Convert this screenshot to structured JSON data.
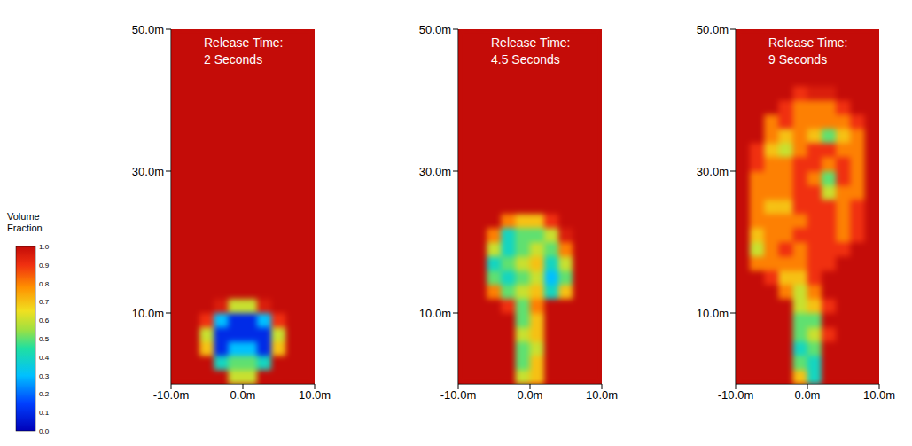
{
  "chart_data": [
    {
      "type": "heatmap",
      "title": "Release Time:\n2 Seconds",
      "xlim": [
        -10,
        10
      ],
      "xticks": [
        {
          "value": -10,
          "label": "-10.0m"
        },
        {
          "value": 0,
          "label": "0.0m"
        },
        {
          "value": 10,
          "label": "10.0m"
        }
      ],
      "ylim": [
        0,
        50
      ],
      "yticks": [
        {
          "value": 10,
          "label": "10.0m"
        },
        {
          "value": 30,
          "label": "30.0m"
        },
        {
          "value": 50,
          "label": "50.0m"
        }
      ],
      "x_edges": [
        -10,
        -8,
        -6,
        -4,
        -2,
        0,
        2,
        4,
        6,
        8,
        10
      ],
      "y_edges": [
        0,
        2,
        4,
        6,
        8,
        10,
        12,
        14,
        16,
        18,
        20,
        22,
        24,
        26,
        28,
        30,
        32,
        34,
        36,
        38,
        40,
        42,
        44,
        46,
        48,
        50
      ],
      "cells": [
        [
          1,
          1,
          1,
          1,
          0.6,
          0.6,
          1,
          1,
          1,
          1
        ],
        [
          1,
          1,
          1,
          0.4,
          0.5,
          0.5,
          0.4,
          1,
          1,
          1
        ],
        [
          1,
          1,
          0.7,
          0.1,
          0.3,
          0.3,
          0.1,
          0.7,
          1,
          1
        ],
        [
          1,
          1,
          0.6,
          0.1,
          0.1,
          0.1,
          0.1,
          0.6,
          1,
          1
        ],
        [
          1,
          1,
          0.9,
          0.3,
          0.1,
          0.1,
          0.3,
          0.9,
          1,
          1
        ],
        [
          1,
          1,
          1,
          0.95,
          0.6,
          0.6,
          0.95,
          1,
          1,
          1
        ],
        [
          1,
          1,
          1,
          1,
          1,
          1,
          1,
          1,
          1,
          1
        ],
        [
          1,
          1,
          1,
          1,
          1,
          1,
          1,
          1,
          1,
          1
        ],
        [
          1,
          1,
          1,
          1,
          1,
          1,
          1,
          1,
          1,
          1
        ],
        [
          1,
          1,
          1,
          1,
          1,
          1,
          1,
          1,
          1,
          1
        ],
        [
          1,
          1,
          1,
          1,
          1,
          1,
          1,
          1,
          1,
          1
        ],
        [
          1,
          1,
          1,
          1,
          1,
          1,
          1,
          1,
          1,
          1
        ],
        [
          1,
          1,
          1,
          1,
          1,
          1,
          1,
          1,
          1,
          1
        ],
        [
          1,
          1,
          1,
          1,
          1,
          1,
          1,
          1,
          1,
          1
        ],
        [
          1,
          1,
          1,
          1,
          1,
          1,
          1,
          1,
          1,
          1
        ],
        [
          1,
          1,
          1,
          1,
          1,
          1,
          1,
          1,
          1,
          1
        ],
        [
          1,
          1,
          1,
          1,
          1,
          1,
          1,
          1,
          1,
          1
        ],
        [
          1,
          1,
          1,
          1,
          1,
          1,
          1,
          1,
          1,
          1
        ],
        [
          1,
          1,
          1,
          1,
          1,
          1,
          1,
          1,
          1,
          1
        ],
        [
          1,
          1,
          1,
          1,
          1,
          1,
          1,
          1,
          1,
          1
        ],
        [
          1,
          1,
          1,
          1,
          1,
          1,
          1,
          1,
          1,
          1
        ],
        [
          1,
          1,
          1,
          1,
          1,
          1,
          1,
          1,
          1,
          1
        ],
        [
          1,
          1,
          1,
          1,
          1,
          1,
          1,
          1,
          1,
          1
        ],
        [
          1,
          1,
          1,
          1,
          1,
          1,
          1,
          1,
          1,
          1
        ],
        [
          1,
          1,
          1,
          1,
          1,
          1,
          1,
          1,
          1,
          1
        ]
      ]
    },
    {
      "type": "heatmap",
      "title": "Release Time:\n4.5 Seconds",
      "xlim": [
        -10,
        10
      ],
      "xticks": [
        {
          "value": -10,
          "label": "-10.0m"
        },
        {
          "value": 0,
          "label": "0.0m"
        },
        {
          "value": 10,
          "label": "10.0m"
        }
      ],
      "ylim": [
        0,
        50
      ],
      "yticks": [
        {
          "value": 10,
          "label": "10.0m"
        },
        {
          "value": 30,
          "label": "30.0m"
        },
        {
          "value": 50,
          "label": "50.0m"
        }
      ],
      "x_edges": [
        -10,
        -8,
        -6,
        -4,
        -2,
        0,
        2,
        4,
        6,
        8,
        10
      ],
      "y_edges": [
        0,
        2,
        4,
        6,
        8,
        10,
        12,
        14,
        16,
        18,
        20,
        22,
        24,
        26,
        28,
        30,
        32,
        34,
        36,
        38,
        40,
        42,
        44,
        46,
        48,
        50
      ],
      "cells": [
        [
          1,
          1,
          1,
          1,
          0.6,
          0.7,
          1,
          1,
          1,
          1
        ],
        [
          1,
          1,
          1,
          1,
          0.5,
          0.7,
          1,
          1,
          1,
          1
        ],
        [
          1,
          1,
          1,
          1,
          0.5,
          0.6,
          1,
          1,
          1,
          1
        ],
        [
          1,
          1,
          1,
          1,
          0.6,
          0.7,
          1,
          1,
          1,
          1
        ],
        [
          1,
          1,
          1,
          1,
          0.5,
          0.7,
          1,
          1,
          1,
          1
        ],
        [
          1,
          1,
          1,
          0.9,
          0.5,
          0.8,
          1,
          1,
          1,
          1
        ],
        [
          1,
          1,
          0.8,
          0.5,
          0.6,
          0.7,
          0.4,
          0.7,
          1,
          1
        ],
        [
          1,
          1,
          0.5,
          0.4,
          0.5,
          0.6,
          0.3,
          0.5,
          1,
          1
        ],
        [
          1,
          1,
          0.4,
          0.5,
          0.6,
          0.7,
          0.4,
          0.6,
          1,
          1
        ],
        [
          1,
          1,
          0.6,
          0.4,
          0.5,
          0.6,
          0.5,
          0.8,
          1,
          1
        ],
        [
          1,
          1,
          0.8,
          0.4,
          0.5,
          0.5,
          0.6,
          0.95,
          1,
          1
        ],
        [
          1,
          1,
          1,
          0.8,
          0.7,
          0.7,
          0.9,
          1,
          1,
          1
        ],
        [
          1,
          1,
          1,
          1,
          1,
          1,
          1,
          1,
          1,
          1
        ],
        [
          1,
          1,
          1,
          1,
          1,
          1,
          1,
          1,
          1,
          1
        ],
        [
          1,
          1,
          1,
          1,
          1,
          1,
          1,
          1,
          1,
          1
        ],
        [
          1,
          1,
          1,
          1,
          1,
          1,
          1,
          1,
          1,
          1
        ],
        [
          1,
          1,
          1,
          1,
          1,
          1,
          1,
          1,
          1,
          1
        ],
        [
          1,
          1,
          1,
          1,
          1,
          1,
          1,
          1,
          1,
          1
        ],
        [
          1,
          1,
          1,
          1,
          1,
          1,
          1,
          1,
          1,
          1
        ],
        [
          1,
          1,
          1,
          1,
          1,
          1,
          1,
          1,
          1,
          1
        ],
        [
          1,
          1,
          1,
          1,
          1,
          1,
          1,
          1,
          1,
          1
        ],
        [
          1,
          1,
          1,
          1,
          1,
          1,
          1,
          1,
          1,
          1
        ],
        [
          1,
          1,
          1,
          1,
          1,
          1,
          1,
          1,
          1,
          1
        ],
        [
          1,
          1,
          1,
          1,
          1,
          1,
          1,
          1,
          1,
          1
        ],
        [
          1,
          1,
          1,
          1,
          1,
          1,
          1,
          1,
          1,
          1
        ]
      ]
    },
    {
      "type": "heatmap",
      "title": "Release Time:\n9 Seconds",
      "xlim": [
        -10,
        10
      ],
      "xticks": [
        {
          "value": -10,
          "label": "-10.0m"
        },
        {
          "value": 0,
          "label": "0.0m"
        },
        {
          "value": 10,
          "label": "10.0m"
        }
      ],
      "ylim": [
        0,
        50
      ],
      "yticks": [
        {
          "value": 10,
          "label": "10.0m"
        },
        {
          "value": 30,
          "label": "30.0m"
        },
        {
          "value": 50,
          "label": "50.0m"
        }
      ],
      "x_edges": [
        -10,
        -8,
        -6,
        -4,
        -2,
        0,
        2,
        4,
        6,
        8,
        10
      ],
      "y_edges": [
        0,
        2,
        4,
        6,
        8,
        10,
        12,
        14,
        16,
        18,
        20,
        22,
        24,
        26,
        28,
        30,
        32,
        34,
        36,
        38,
        40,
        42,
        44,
        46,
        48,
        50
      ],
      "cells": [
        [
          1,
          1,
          1,
          1,
          0.7,
          0.4,
          1,
          1,
          1,
          1
        ],
        [
          1,
          1,
          1,
          1,
          0.5,
          0.4,
          1,
          1,
          1,
          1
        ],
        [
          1,
          1,
          1,
          1,
          0.4,
          0.5,
          1,
          1,
          1,
          1
        ],
        [
          1,
          1,
          1,
          1,
          0.5,
          0.6,
          0.9,
          1,
          1,
          1
        ],
        [
          1,
          1,
          1,
          1,
          0.5,
          0.5,
          1,
          1,
          1,
          1
        ],
        [
          1,
          1,
          1,
          1,
          0.6,
          0.7,
          0.9,
          1,
          1,
          1
        ],
        [
          1,
          1,
          1,
          0.8,
          0.6,
          0.8,
          1,
          1,
          1,
          1
        ],
        [
          1,
          1,
          0.9,
          0.7,
          0.7,
          0.9,
          1,
          1,
          1,
          1
        ],
        [
          1,
          0.8,
          0.8,
          0.8,
          0.8,
          0.9,
          0.9,
          1,
          1,
          1
        ],
        [
          1,
          0.6,
          0.8,
          0.9,
          0.8,
          0.9,
          0.9,
          0.9,
          1,
          1
        ],
        [
          1,
          0.7,
          0.8,
          0.8,
          0.9,
          0.9,
          0.9,
          0.8,
          0.9,
          1
        ],
        [
          1,
          0.8,
          0.8,
          0.8,
          0.8,
          0.9,
          0.9,
          0.8,
          0.9,
          1
        ],
        [
          1,
          0.8,
          0.7,
          0.7,
          0.9,
          0.9,
          0.9,
          0.8,
          0.9,
          1
        ],
        [
          1,
          0.8,
          0.8,
          0.8,
          0.9,
          0.9,
          0.6,
          0.8,
          0.8,
          1
        ],
        [
          1,
          0.8,
          0.8,
          0.8,
          0.9,
          0.8,
          0.5,
          0.9,
          0.8,
          1
        ],
        [
          1,
          0.9,
          0.8,
          0.8,
          0.9,
          0.9,
          0.8,
          0.9,
          0.8,
          1
        ],
        [
          1,
          0.9,
          0.7,
          0.6,
          0.8,
          0.9,
          0.9,
          0.8,
          0.8,
          1
        ],
        [
          1,
          1,
          0.8,
          0.7,
          0.8,
          0.7,
          0.5,
          0.7,
          0.8,
          1
        ],
        [
          1,
          1,
          0.8,
          0.9,
          0.8,
          0.8,
          0.8,
          0.8,
          0.9,
          1
        ],
        [
          1,
          1,
          1,
          0.9,
          0.8,
          0.8,
          0.8,
          0.9,
          1,
          1
        ],
        [
          1,
          1,
          1,
          1,
          0.9,
          0.95,
          0.95,
          1,
          1,
          1
        ],
        [
          1,
          1,
          1,
          1,
          1,
          1,
          1,
          1,
          1,
          1
        ],
        [
          1,
          1,
          1,
          1,
          1,
          1,
          1,
          1,
          1,
          1
        ],
        [
          1,
          1,
          1,
          1,
          1,
          1,
          1,
          1,
          1,
          1
        ],
        [
          1,
          1,
          1,
          1,
          1,
          1,
          1,
          1,
          1,
          1
        ]
      ]
    }
  ],
  "colorbar": {
    "title": "Volume\nFraction",
    "range": [
      0,
      1
    ],
    "ticks": [
      {
        "value": 0,
        "label": "0.0"
      },
      {
        "value": 0.1,
        "label": "0.1"
      },
      {
        "value": 0.2,
        "label": "0.2"
      },
      {
        "value": 0.3,
        "label": "0.3"
      },
      {
        "value": 0.4,
        "label": "0.4"
      },
      {
        "value": 0.5,
        "label": "0.5"
      },
      {
        "value": 0.6,
        "label": "0.6"
      },
      {
        "value": 0.7,
        "label": "0.7"
      },
      {
        "value": 0.8,
        "label": "0.8"
      },
      {
        "value": 0.9,
        "label": "0.9"
      },
      {
        "value": 1,
        "label": "1.0"
      }
    ]
  }
}
